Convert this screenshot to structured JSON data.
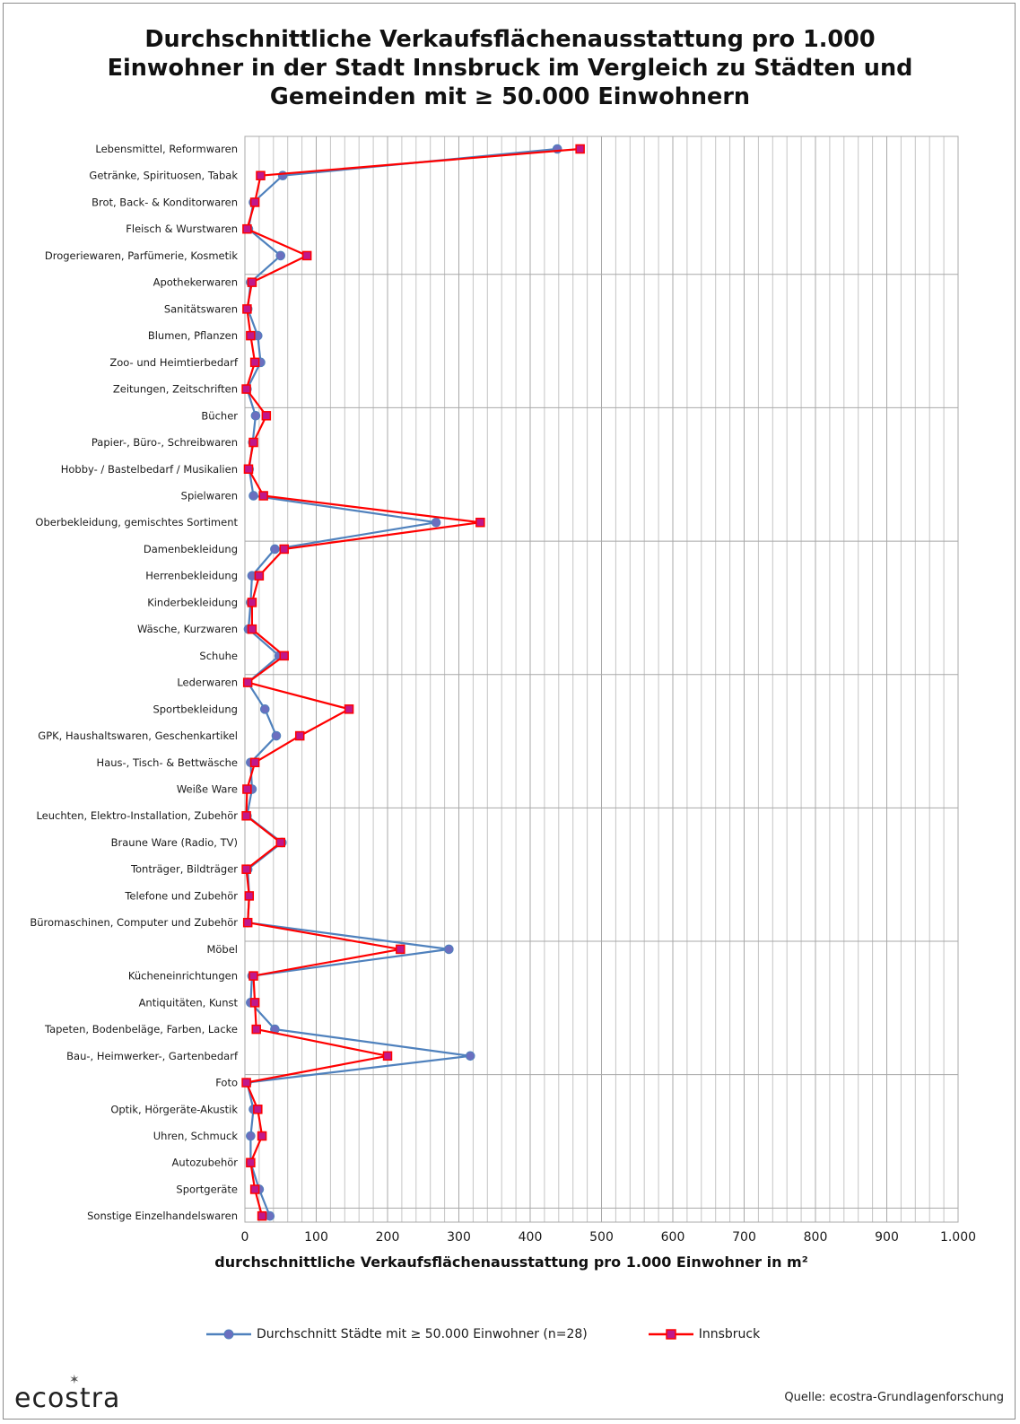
{
  "chart_data": {
    "type": "line",
    "title_lines": [
      "Durchschnittliche Verkaufsflächenausstattung pro 1.000",
      "Einwohner in der Stadt Innsbruck im Vergleich zu Städten und",
      "Gemeinden mit ≥ 50.000 Einwohnern"
    ],
    "xlabel": "durchschnittliche Verkaufsflächenausstattung pro 1.000 Einwohner in m²",
    "xlim": [
      0,
      1000
    ],
    "x_ticks": [
      0,
      100,
      200,
      300,
      400,
      500,
      600,
      700,
      800,
      900,
      1000
    ],
    "x_tick_labels": [
      "0",
      "100",
      "200",
      "300",
      "400",
      "500",
      "600",
      "700",
      "800",
      "900",
      "1.000"
    ],
    "orientation": "horizontal-values",
    "grid": true,
    "legend_position": "bottom",
    "categories": [
      "Lebensmittel, Reformwaren",
      "Getränke, Spirituosen, Tabak",
      "Brot, Back- & Konditorwaren",
      "Fleisch & Wurstwaren",
      "Drogeriewaren, Parfümerie, Kosmetik",
      "Apothekerwaren",
      "Sanitätswaren",
      "Blumen, Pflanzen",
      "Zoo- und Heimtierbedarf",
      "Zeitungen, Zeitschriften",
      "Bücher",
      "Papier-, Büro-, Schreibwaren",
      "Hobby- / Bastelbedarf / Musikalien",
      "Spielwaren",
      "Oberbekleidung, gemischtes Sortiment",
      "Damenbekleidung",
      "Herrenbekleidung",
      "Kinderbekleidung",
      "Wäsche, Kurzwaren",
      "Schuhe",
      "Lederwaren",
      "Sportbekleidung",
      "GPK, Haushaltswaren, Geschenkartikel",
      "Haus-, Tisch- & Bettwäsche",
      "Weiße Ware",
      "Leuchten, Elektro-Installation, Zubehör",
      "Braune Ware (Radio, TV)",
      "Tonträger, Bildträger",
      "Telefone und Zubehör",
      "Büromaschinen, Computer und Zubehör",
      "Möbel",
      "Kücheneinrichtungen",
      "Antiquitäten, Kunst",
      "Tapeten, Bodenbeläge, Farben, Lacke",
      "Bau-, Heimwerker-, Gartenbedarf",
      "Foto",
      "Optik, Hörgeräte-Akustik",
      "Uhren, Schmuck",
      "Autozubehör",
      "Sportgeräte",
      "Sonstige Einzelhandelswaren"
    ],
    "series": [
      {
        "name": "Durchschnitt Städte mit ≥ 50.000 Einwohner (n=28)",
        "color": "#4f81bd",
        "marker": "circle",
        "values": [
          438,
          53,
          12,
          5,
          50,
          8,
          4,
          18,
          22,
          3,
          15,
          11,
          6,
          12,
          268,
          42,
          10,
          8,
          5,
          48,
          4,
          28,
          44,
          8,
          10,
          3,
          52,
          4,
          6,
          4,
          286,
          10,
          8,
          42,
          316,
          3,
          12,
          8,
          8,
          20,
          35
        ]
      },
      {
        "name": "Innsbruck",
        "color": "#ff0000",
        "marker": "square",
        "values": [
          470,
          22,
          14,
          3,
          87,
          10,
          3,
          8,
          14,
          2,
          30,
          12,
          5,
          26,
          330,
          55,
          20,
          10,
          10,
          55,
          4,
          146,
          77,
          14,
          3,
          2,
          50,
          2,
          6,
          4,
          218,
          12,
          14,
          16,
          200,
          2,
          18,
          24,
          8,
          14,
          24
        ]
      }
    ]
  },
  "footer": {
    "logo": "ecostra",
    "source": "Quelle:  ecostra-Grundlagenforschung"
  }
}
